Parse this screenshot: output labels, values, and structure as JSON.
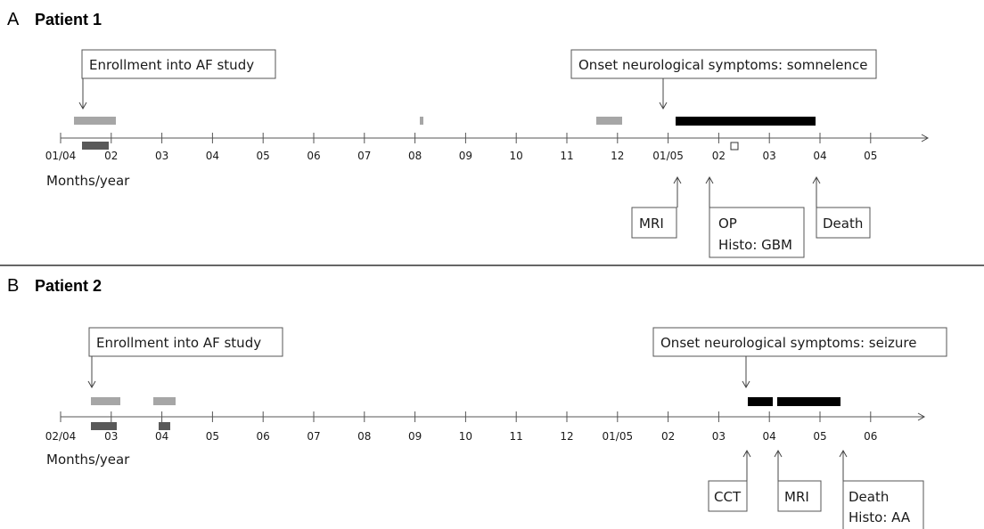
{
  "panels": [
    {
      "letter": "A",
      "title": "Patient 1",
      "axis_caption": "Months/year",
      "ticks": [
        "01/04",
        "02",
        "03",
        "04",
        "05",
        "06",
        "07",
        "08",
        "09",
        "10",
        "11",
        "12",
        "01/05",
        "02",
        "03",
        "04",
        "05"
      ],
      "callouts": {
        "enrollment": "Enrollment into AF study",
        "onset": "Onset neurological symptoms: somnelence",
        "mri": "MRI",
        "op_line1": "OP",
        "op_line2": "Histo: GBM",
        "death": "Death"
      }
    },
    {
      "letter": "B",
      "title": "Patient 2",
      "axis_caption": "Months/year",
      "ticks": [
        "02/04",
        "03",
        "04",
        "05",
        "06",
        "07",
        "08",
        "09",
        "10",
        "11",
        "12",
        "01/05",
        "02",
        "03",
        "04",
        "05",
        "06"
      ],
      "callouts": {
        "enrollment": "Enrollment into AF study",
        "onset": "Onset neurological symptoms:  seizure",
        "cct": "CCT",
        "mri": "MRI",
        "death_line1": "Death",
        "death_line2": "Histo: AA"
      }
    }
  ],
  "colors": {
    "light_bar": "#a6a6a6",
    "dark_bar": "#595959",
    "black_bar": "#000000",
    "divider": "#333333"
  }
}
